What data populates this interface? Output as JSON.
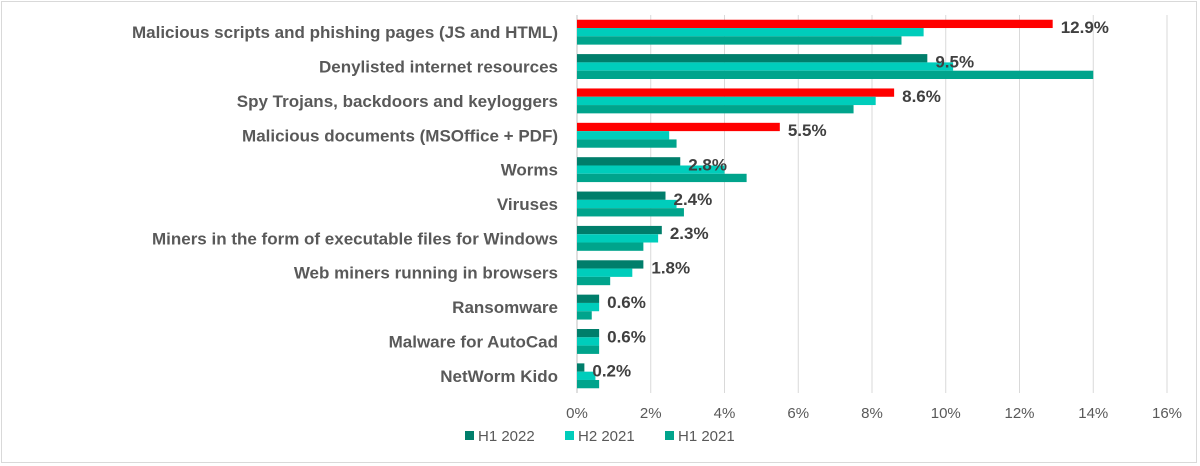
{
  "chart_data": {
    "type": "bar",
    "orientation": "horizontal",
    "categories": [
      "Malicious scripts and phishing pages (JS and HTML)",
      "Denylisted internet resources",
      "Spy Trojans, backdoors and keyloggers",
      "Malicious documents (MSOffice + PDF)",
      "Worms",
      "Viruses",
      "Miners in the form of executable files for Windows",
      "Web miners running in browsers",
      "Ransomware",
      "Malware for AutoCad",
      "NetWorm Kido"
    ],
    "series": [
      {
        "name": "H1 2022",
        "color": "#007e6b",
        "values": [
          12.9,
          9.5,
          8.6,
          5.5,
          2.8,
          2.4,
          2.3,
          1.8,
          0.6,
          0.6,
          0.2
        ]
      },
      {
        "name": "H2 2021",
        "color": "#00cdbb",
        "values": [
          9.4,
          10.2,
          8.1,
          2.5,
          4.0,
          2.7,
          2.2,
          1.5,
          0.6,
          0.6,
          0.5
        ]
      },
      {
        "name": "H1 2021",
        "color": "#00a48c",
        "values": [
          8.8,
          14.0,
          7.5,
          2.7,
          4.6,
          2.9,
          1.8,
          0.9,
          0.4,
          0.6,
          0.6
        ]
      }
    ],
    "highlight_color": "#ff0000",
    "highlighted_categories_h1_2022": [
      0,
      2,
      3
    ],
    "data_labels": [
      "12.9%",
      "9.5%",
      "8.6%",
      "5.5%",
      "2.8%",
      "2.4%",
      "2.3%",
      "1.8%",
      "0.6%",
      "0.6%",
      "0.2%"
    ],
    "xlim": [
      0,
      16
    ],
    "xticks": [
      "0%",
      "2%",
      "4%",
      "6%",
      "8%",
      "10%",
      "12%",
      "14%",
      "16%"
    ],
    "grid": "vertical",
    "legend": "bottom",
    "title": "",
    "xlabel": "",
    "ylabel": ""
  }
}
